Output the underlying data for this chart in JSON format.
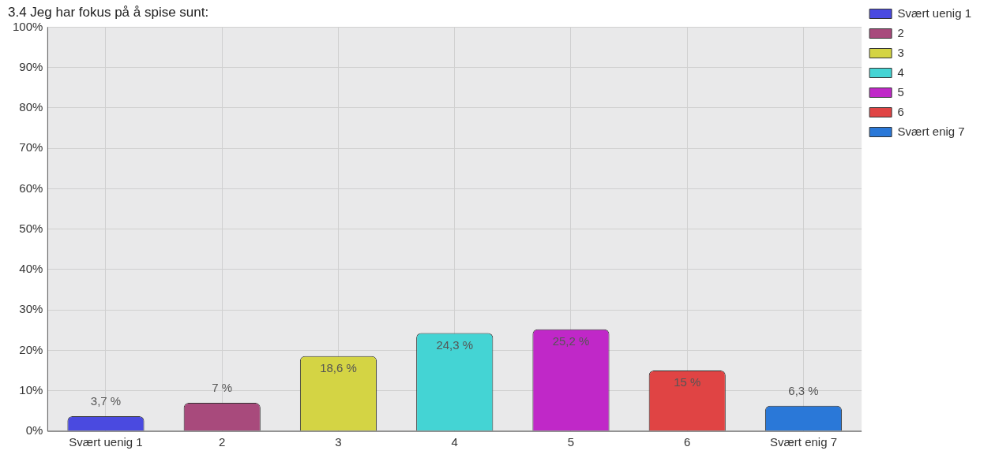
{
  "chart_data": {
    "type": "bar",
    "title": "3.4 Jeg har fokus på å spise sunt:",
    "categories": [
      "Svært uenig 1",
      "2",
      "3",
      "4",
      "5",
      "6",
      "Svært enig 7"
    ],
    "series": [
      {
        "name": "Svært uenig 1",
        "color": "#4a4ae0",
        "values": [
          3.7,
          null,
          null,
          null,
          null,
          null,
          null
        ],
        "value_labels": [
          "3,7 %",
          null,
          null,
          null,
          null,
          null,
          null
        ]
      },
      {
        "name": "2",
        "color": "#a84a7c",
        "values": [
          null,
          7,
          null,
          null,
          null,
          null,
          null
        ],
        "value_labels": [
          null,
          "7 %",
          null,
          null,
          null,
          null,
          null
        ]
      },
      {
        "name": "3",
        "color": "#d4d444",
        "values": [
          null,
          null,
          18.6,
          null,
          null,
          null,
          null
        ],
        "value_labels": [
          null,
          null,
          "18,6 %",
          null,
          null,
          null,
          null
        ]
      },
      {
        "name": "4",
        "color": "#44d4d4",
        "values": [
          null,
          null,
          null,
          24.3,
          null,
          null,
          null
        ],
        "value_labels": [
          null,
          null,
          null,
          "24,3 %",
          null,
          null,
          null
        ]
      },
      {
        "name": "5",
        "color": "#c028c8",
        "values": [
          null,
          null,
          null,
          null,
          25.2,
          null,
          null
        ],
        "value_labels": [
          null,
          null,
          null,
          null,
          "25,2 %",
          null,
          null
        ]
      },
      {
        "name": "6",
        "color": "#e04444",
        "values": [
          null,
          null,
          null,
          null,
          null,
          15,
          null
        ],
        "value_labels": [
          null,
          null,
          null,
          null,
          null,
          "15 %",
          null
        ]
      },
      {
        "name": "Svært enig 7",
        "color": "#2a78d8",
        "values": [
          null,
          null,
          null,
          null,
          null,
          null,
          6.3
        ],
        "value_labels": [
          null,
          null,
          null,
          null,
          null,
          null,
          "6,3 %"
        ]
      }
    ],
    "ylim": [
      0,
      100
    ],
    "yticks": [
      {
        "value": 0,
        "label": "0%"
      },
      {
        "value": 10,
        "label": "10%"
      },
      {
        "value": 20,
        "label": "20%"
      },
      {
        "value": 30,
        "label": "30%"
      },
      {
        "value": 40,
        "label": "40%"
      },
      {
        "value": 50,
        "label": "50%"
      },
      {
        "value": 60,
        "label": "60%"
      },
      {
        "value": 70,
        "label": "70%"
      },
      {
        "value": 80,
        "label": "80%"
      },
      {
        "value": 90,
        "label": "90%"
      },
      {
        "value": 100,
        "label": "100%"
      }
    ],
    "grid": true,
    "legend": "right"
  }
}
